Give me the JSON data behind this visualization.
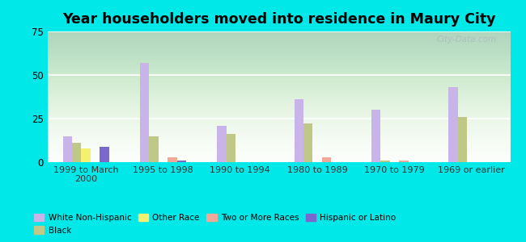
{
  "title": "Year householders moved into residence in Maury City",
  "categories": [
    "1999 to March\n2000",
    "1995 to 1998",
    "1990 to 1994",
    "1980 to 1989",
    "1970 to 1979",
    "1969 or earlier"
  ],
  "series": {
    "White Non-Hispanic": [
      15,
      57,
      21,
      36,
      30,
      43
    ],
    "Black": [
      11,
      15,
      16,
      22,
      1,
      26
    ],
    "Other Race": [
      8,
      0,
      0,
      0,
      0,
      0
    ],
    "Two or More Races": [
      0,
      3,
      0,
      3,
      1,
      0
    ],
    "Hispanic or Latino": [
      9,
      1,
      0,
      0,
      0,
      0
    ]
  },
  "colors": {
    "White Non-Hispanic": "#c8b4e8",
    "Black": "#c0c888",
    "Other Race": "#f5f070",
    "Two or More Races": "#f0a898",
    "Hispanic or Latino": "#7b68cc"
  },
  "ylim": [
    0,
    75
  ],
  "yticks": [
    0,
    25,
    50,
    75
  ],
  "background_color": "#00e8e8",
  "watermark": "City-Data.com",
  "plot_bg_top": "#b8ddb8",
  "plot_bg_bottom": "#f0f8f0"
}
